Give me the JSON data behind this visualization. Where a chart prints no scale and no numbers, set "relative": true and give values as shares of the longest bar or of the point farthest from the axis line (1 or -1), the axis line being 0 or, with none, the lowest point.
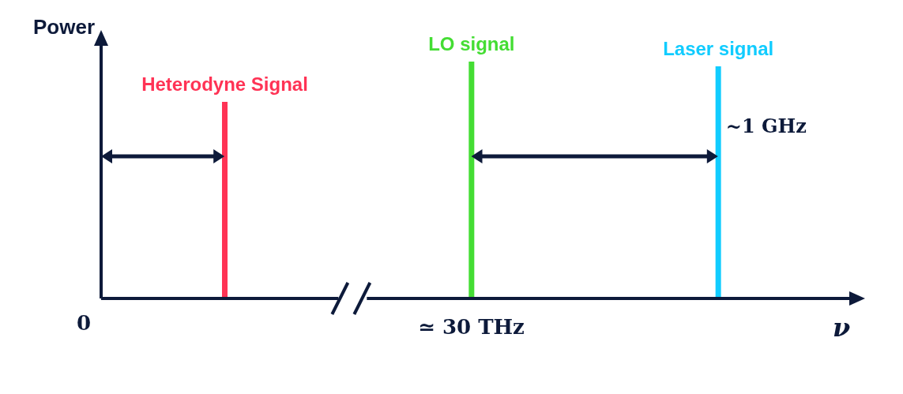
{
  "chart_data": {
    "type": "bar",
    "relative": true,
    "ylabel": "Power",
    "xlabel": "ν",
    "categories": [
      null,
      null,
      null
    ],
    "values": [
      0.83,
      1,
      0.98
    ],
    "colors": [
      "#ff3355",
      "#44dd33",
      "#11ccff"
    ],
    "annotations": [
      "Heterodyne Signal",
      "LO signal",
      "Laser signal",
      "0",
      "~1 GHz",
      "≃ 30 THz"
    ],
    "legend": false,
    "grid": false
  }
}
